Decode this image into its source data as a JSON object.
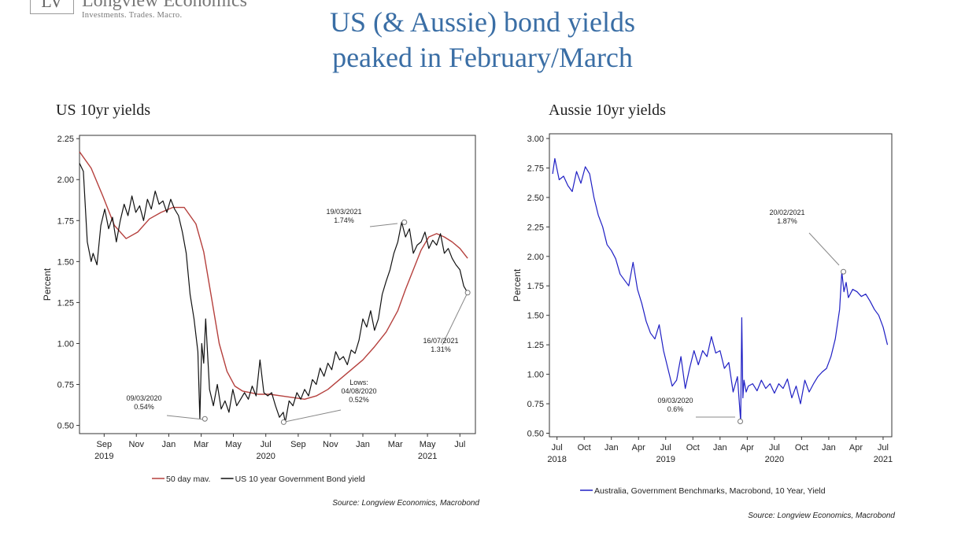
{
  "logo": {
    "mark": "LV",
    "name": "Longview Economics",
    "tagline": "Investments. Trades. Macro."
  },
  "title": {
    "line1": "US (& Aussie) bond yields",
    "line2": "peaked in February/March"
  },
  "colors": {
    "title": "#3a6ea5",
    "us_yield": "#111111",
    "us_mav": "#b5403d",
    "au_yield": "#1f1fc4",
    "annotation": "#888888"
  },
  "chart_data": [
    {
      "heading": "US 10yr yields",
      "type": "line",
      "ylabel": "Percent",
      "ylim": [
        0.45,
        2.27
      ],
      "y_ticks": [
        "0.50",
        "0.75",
        "1.00",
        "1.25",
        "1.50",
        "1.75",
        "2.00",
        "2.25"
      ],
      "x_ticks": [
        {
          "label": "Sep",
          "x": 2019.667
        },
        {
          "label": "Nov",
          "x": 2019.833
        },
        {
          "label": "Jan",
          "x": 2020.0
        },
        {
          "label": "Mar",
          "x": 2020.167
        },
        {
          "label": "May",
          "x": 2020.333
        },
        {
          "label": "Jul",
          "x": 2020.5
        },
        {
          "label": "Sep",
          "x": 2020.667
        },
        {
          "label": "Nov",
          "x": 2020.833
        },
        {
          "label": "Jan",
          "x": 2021.0
        },
        {
          "label": "Mar",
          "x": 2021.167
        },
        {
          "label": "May",
          "x": 2021.333
        },
        {
          "label": "Jul",
          "x": 2021.5
        }
      ],
      "year_labels": [
        {
          "label": "2019",
          "x": 2019.667
        },
        {
          "label": "2020",
          "x": 2020.5
        },
        {
          "label": "2021",
          "x": 2021.333
        }
      ],
      "xlim": [
        2019.54,
        2021.58
      ],
      "series": [
        {
          "name": "US 10 year Government Bond yield",
          "x": [
            2019.54,
            2019.56,
            2019.58,
            2019.6,
            2019.61,
            2019.63,
            2019.65,
            2019.67,
            2019.69,
            2019.71,
            2019.73,
            2019.75,
            2019.77,
            2019.79,
            2019.81,
            2019.83,
            2019.85,
            2019.87,
            2019.89,
            2019.91,
            2019.93,
            2019.95,
            2019.97,
            2019.99,
            2020.01,
            2020.03,
            2020.05,
            2020.07,
            2020.09,
            2020.11,
            2020.13,
            2020.15,
            2020.16,
            2020.17,
            2020.18,
            2020.19,
            2020.21,
            2020.23,
            2020.25,
            2020.27,
            2020.29,
            2020.31,
            2020.33,
            2020.35,
            2020.37,
            2020.39,
            2020.41,
            2020.43,
            2020.45,
            2020.47,
            2020.49,
            2020.51,
            2020.53,
            2020.55,
            2020.57,
            2020.59,
            2020.6,
            2020.62,
            2020.64,
            2020.66,
            2020.68,
            2020.7,
            2020.72,
            2020.74,
            2020.76,
            2020.78,
            2020.8,
            2020.82,
            2020.84,
            2020.86,
            2020.88,
            2020.9,
            2020.92,
            2020.94,
            2020.96,
            2020.98,
            2021.0,
            2021.02,
            2021.04,
            2021.06,
            2021.08,
            2021.1,
            2021.12,
            2021.14,
            2021.16,
            2021.18,
            2021.2,
            2021.22,
            2021.24,
            2021.26,
            2021.28,
            2021.3,
            2021.32,
            2021.34,
            2021.36,
            2021.38,
            2021.4,
            2021.42,
            2021.44,
            2021.46,
            2021.48,
            2021.5,
            2021.52,
            2021.54
          ],
          "y": [
            2.1,
            2.05,
            1.62,
            1.5,
            1.55,
            1.48,
            1.72,
            1.82,
            1.7,
            1.77,
            1.62,
            1.75,
            1.85,
            1.78,
            1.9,
            1.8,
            1.84,
            1.75,
            1.88,
            1.82,
            1.93,
            1.85,
            1.87,
            1.8,
            1.88,
            1.82,
            1.78,
            1.68,
            1.55,
            1.3,
            1.15,
            0.95,
            0.54,
            1.0,
            0.88,
            1.15,
            0.72,
            0.62,
            0.75,
            0.6,
            0.65,
            0.58,
            0.72,
            0.62,
            0.66,
            0.7,
            0.66,
            0.74,
            0.68,
            0.9,
            0.7,
            0.68,
            0.7,
            0.62,
            0.55,
            0.58,
            0.52,
            0.65,
            0.62,
            0.7,
            0.66,
            0.72,
            0.68,
            0.78,
            0.75,
            0.85,
            0.8,
            0.88,
            0.84,
            0.95,
            0.9,
            0.92,
            0.87,
            0.96,
            0.94,
            1.02,
            1.15,
            1.1,
            1.2,
            1.08,
            1.15,
            1.3,
            1.38,
            1.45,
            1.55,
            1.62,
            1.74,
            1.65,
            1.7,
            1.55,
            1.6,
            1.62,
            1.68,
            1.58,
            1.63,
            1.6,
            1.67,
            1.55,
            1.58,
            1.52,
            1.48,
            1.45,
            1.35,
            1.31
          ]
        },
        {
          "name": "50 day mav.",
          "x": [
            2019.54,
            2019.6,
            2019.66,
            2019.72,
            2019.78,
            2019.84,
            2019.9,
            2019.96,
            2020.02,
            2020.08,
            2020.14,
            2020.18,
            2020.22,
            2020.26,
            2020.3,
            2020.34,
            2020.38,
            2020.42,
            2020.46,
            2020.52,
            2020.58,
            2020.64,
            2020.7,
            2020.76,
            2020.82,
            2020.88,
            2020.94,
            2021.0,
            2021.06,
            2021.12,
            2021.18,
            2021.22,
            2021.26,
            2021.3,
            2021.34,
            2021.38,
            2021.42,
            2021.46,
            2021.5,
            2021.54
          ],
          "y": [
            2.17,
            2.07,
            1.9,
            1.72,
            1.64,
            1.68,
            1.76,
            1.8,
            1.83,
            1.83,
            1.73,
            1.56,
            1.28,
            1.0,
            0.83,
            0.74,
            0.71,
            0.7,
            0.69,
            0.69,
            0.68,
            0.67,
            0.66,
            0.68,
            0.72,
            0.78,
            0.84,
            0.9,
            0.98,
            1.07,
            1.2,
            1.33,
            1.45,
            1.57,
            1.65,
            1.67,
            1.65,
            1.62,
            1.58,
            1.52
          ]
        }
      ],
      "annotations": [
        {
          "text": [
            "19/03/2021",
            "1.74%"
          ],
          "x": 2021.214,
          "y": 1.74
        },
        {
          "text": [
            "09/03/2020",
            "0.54%"
          ],
          "x": 2020.186,
          "y": 0.54
        },
        {
          "text": [
            "Lows:",
            "04/08/2020",
            "0.52%"
          ],
          "x": 2020.592,
          "y": 0.52
        },
        {
          "text": [
            "16/07/2021",
            "1.31%"
          ],
          "x": 2021.54,
          "y": 1.31
        }
      ],
      "legend": "bottom",
      "source": "Source: Longview Economics, Macrobond"
    },
    {
      "heading": "Aussie 10yr yields",
      "type": "line",
      "ylabel": "Percent",
      "ylim": [
        0.47,
        3.04
      ],
      "y_ticks": [
        "0.50",
        "0.75",
        "1.00",
        "1.25",
        "1.50",
        "1.75",
        "2.00",
        "2.25",
        "2.50",
        "2.75",
        "3.00"
      ],
      "x_ticks": [
        {
          "label": "Jul",
          "x": 2018.5
        },
        {
          "label": "Oct",
          "x": 2018.75
        },
        {
          "label": "Jan",
          "x": 2019.0
        },
        {
          "label": "Apr",
          "x": 2019.25
        },
        {
          "label": "Jul",
          "x": 2019.5
        },
        {
          "label": "Oct",
          "x": 2019.75
        },
        {
          "label": "Jan",
          "x": 2020.0
        },
        {
          "label": "Apr",
          "x": 2020.25
        },
        {
          "label": "Jul",
          "x": 2020.5
        },
        {
          "label": "Oct",
          "x": 2020.75
        },
        {
          "label": "Jan",
          "x": 2021.0
        },
        {
          "label": "Apr",
          "x": 2021.25
        },
        {
          "label": "Jul",
          "x": 2021.5
        }
      ],
      "year_labels": [
        {
          "label": "2018",
          "x": 2018.5
        },
        {
          "label": "2019",
          "x": 2019.5
        },
        {
          "label": "2020",
          "x": 2020.5
        },
        {
          "label": "2021",
          "x": 2021.5
        }
      ],
      "xlim": [
        2018.43,
        2021.58
      ],
      "series": [
        {
          "name": "Australia, Government Benchmarks, Macrobond, 10 Year, Yield",
          "x": [
            2018.46,
            2018.48,
            2018.52,
            2018.56,
            2018.6,
            2018.64,
            2018.68,
            2018.72,
            2018.76,
            2018.8,
            2018.84,
            2018.88,
            2018.92,
            2018.96,
            2019.0,
            2019.04,
            2019.08,
            2019.12,
            2019.16,
            2019.2,
            2019.24,
            2019.28,
            2019.32,
            2019.36,
            2019.4,
            2019.44,
            2019.48,
            2019.52,
            2019.56,
            2019.6,
            2019.64,
            2019.68,
            2019.72,
            2019.76,
            2019.8,
            2019.84,
            2019.88,
            2019.92,
            2019.96,
            2020.0,
            2020.04,
            2020.08,
            2020.12,
            2020.16,
            2020.18,
            2020.19,
            2020.2,
            2020.21,
            2020.22,
            2020.24,
            2020.26,
            2020.3,
            2020.34,
            2020.38,
            2020.42,
            2020.46,
            2020.5,
            2020.54,
            2020.58,
            2020.62,
            2020.66,
            2020.7,
            2020.74,
            2020.78,
            2020.82,
            2020.86,
            2020.9,
            2020.94,
            2020.98,
            2021.02,
            2021.06,
            2021.1,
            2021.12,
            2021.14,
            2021.16,
            2021.18,
            2021.22,
            2021.26,
            2021.3,
            2021.34,
            2021.38,
            2021.42,
            2021.46,
            2021.5,
            2021.54
          ],
          "y": [
            2.7,
            2.83,
            2.65,
            2.68,
            2.6,
            2.55,
            2.72,
            2.62,
            2.76,
            2.7,
            2.5,
            2.35,
            2.25,
            2.1,
            2.05,
            1.98,
            1.85,
            1.8,
            1.75,
            1.95,
            1.72,
            1.6,
            1.45,
            1.35,
            1.3,
            1.42,
            1.2,
            1.05,
            0.9,
            0.95,
            1.15,
            0.88,
            1.05,
            1.2,
            1.08,
            1.2,
            1.15,
            1.32,
            1.18,
            1.2,
            1.05,
            1.1,
            0.85,
            0.98,
            0.72,
            0.6,
            1.48,
            0.8,
            0.95,
            0.85,
            0.9,
            0.92,
            0.86,
            0.95,
            0.88,
            0.92,
            0.84,
            0.92,
            0.88,
            0.96,
            0.8,
            0.9,
            0.75,
            0.95,
            0.85,
            0.92,
            0.98,
            1.02,
            1.05,
            1.15,
            1.3,
            1.55,
            1.87,
            1.7,
            1.78,
            1.65,
            1.72,
            1.7,
            1.66,
            1.68,
            1.62,
            1.55,
            1.5,
            1.4,
            1.25
          ]
        }
      ],
      "annotations": [
        {
          "text": [
            "20/02/2021",
            "1.87%"
          ],
          "x": 2021.135,
          "y": 1.87
        },
        {
          "text": [
            "09/03/2020",
            "0.6%"
          ],
          "x": 2020.186,
          "y": 0.6
        }
      ],
      "legend": "bottom",
      "source": "Source: Longview Economics, Macrobond"
    }
  ]
}
